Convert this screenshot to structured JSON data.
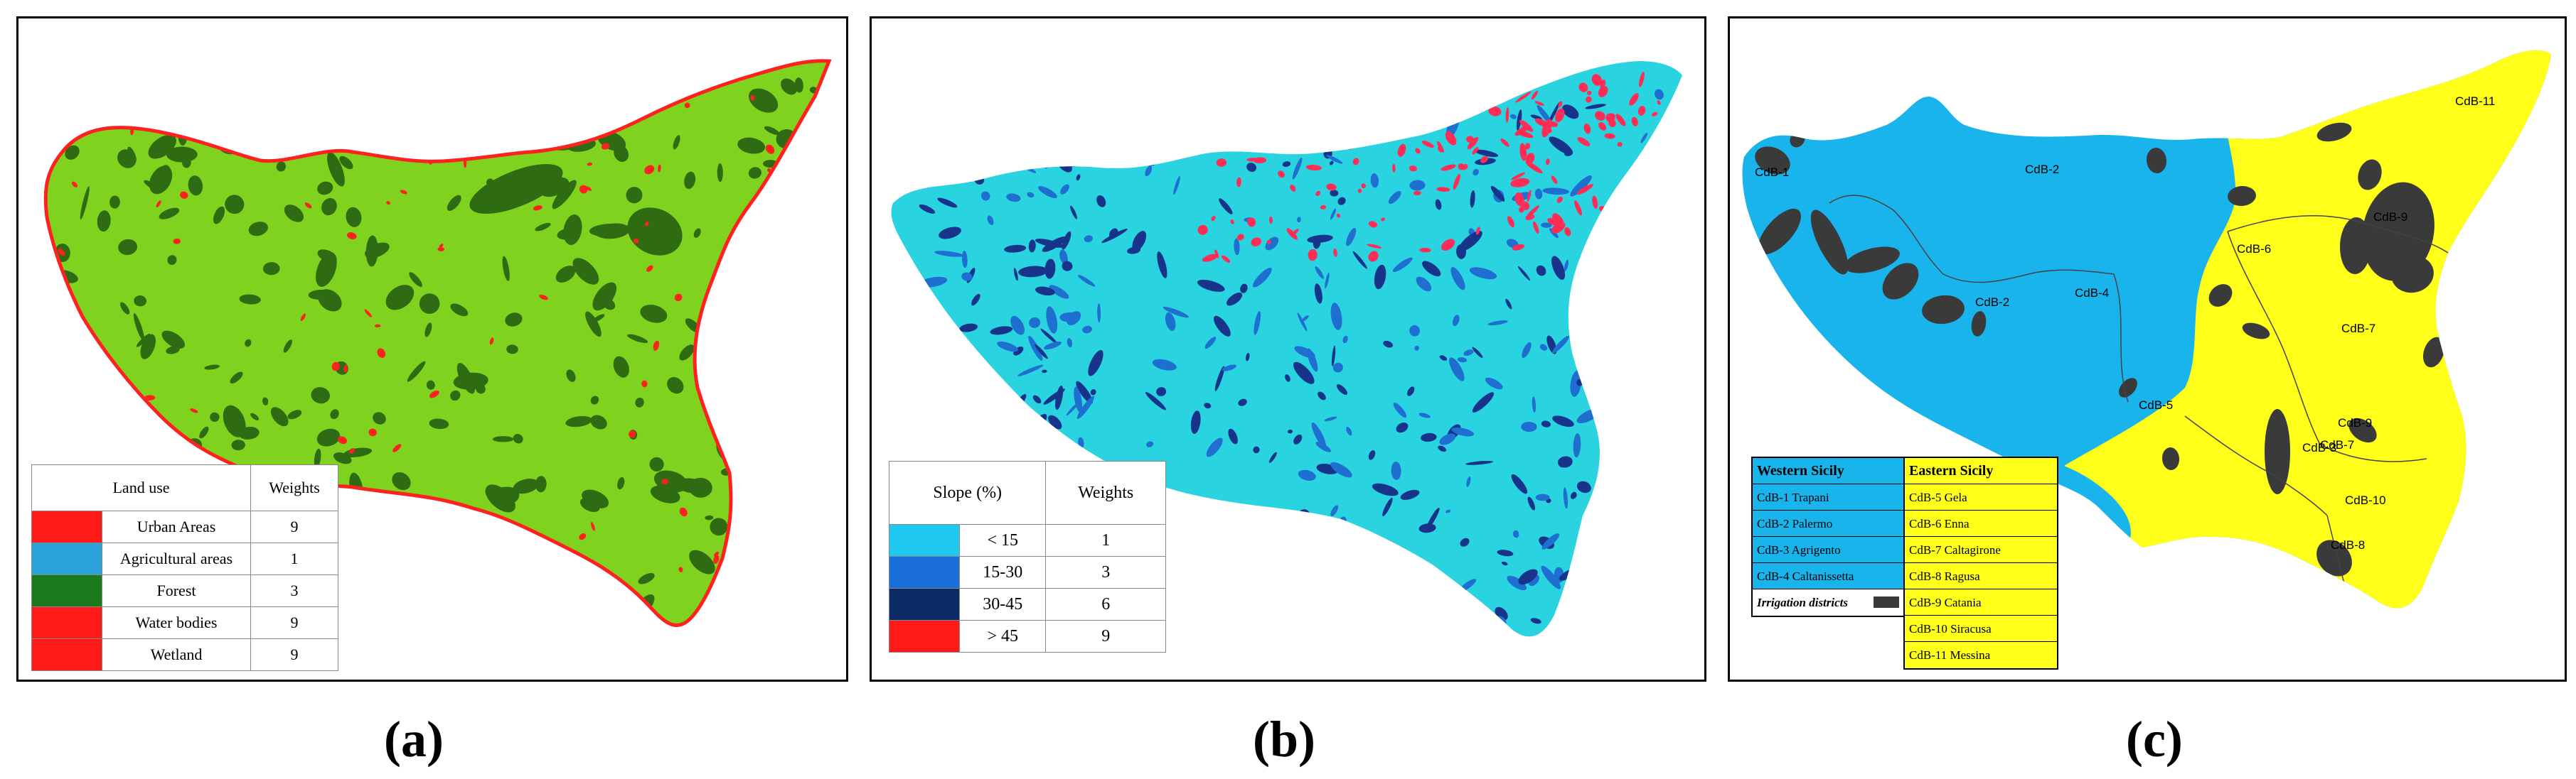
{
  "panels": {
    "a": {
      "caption": "(a)",
      "legend": {
        "headers": [
          "Land use",
          "Weights"
        ],
        "rows": [
          {
            "label": "Urban Areas",
            "weight": "9",
            "color": "#ff1a1a"
          },
          {
            "label": "Agricultural areas",
            "weight": "1",
            "color": "#2aa3d8"
          },
          {
            "label": "Forest",
            "weight": "3",
            "color": "#1b7a1b"
          },
          {
            "label": "Water bodies",
            "weight": "9",
            "color": "#ff1a1a"
          },
          {
            "label": "Wetland",
            "weight": "9",
            "color": "#ff1a1a"
          }
        ]
      },
      "colors": {
        "base": "#7fd31f",
        "forest": "#2e6b12",
        "urban": "#ff2020"
      }
    },
    "b": {
      "caption": "(b)",
      "legend": {
        "headers": [
          "Slope (%)",
          "Weights"
        ],
        "rows": [
          {
            "label": "< 15",
            "weight": "1",
            "color": "#1ec8ef"
          },
          {
            "label": "15-30",
            "weight": "3",
            "color": "#1a6ed8"
          },
          {
            "label": "30-45",
            "weight": "6",
            "color": "#0b2a66"
          },
          {
            "label": "> 45",
            "weight": "9",
            "color": "#ff1a1a"
          }
        ]
      },
      "colors": {
        "base": "#29d3e0",
        "mid": "#1f6fd0",
        "dark": "#17338a",
        "steep": "#ff2d55"
      }
    },
    "c": {
      "caption": "(c)",
      "labels": [
        "CdB-1",
        "CdB-2",
        "CdB-2",
        "CdB-4",
        "CdB-11",
        "CdB-6",
        "CdB-9",
        "CdB-7",
        "CdB-5",
        "CdB-9",
        "CdB-3",
        "CdB-7",
        "CdB-10",
        "CdB-8"
      ],
      "legend": {
        "western": {
          "title": "Western Sicily",
          "items": [
            "CdB-1 Trapani",
            "CdB-2 Palermo",
            "CdB-3 Agrigento",
            "CdB-4 Caltanissetta"
          ],
          "irrigation": "Irrigation districts"
        },
        "eastern": {
          "title": "Eastern Sicily",
          "items": [
            "CdB-5 Gela",
            "CdB-6 Enna",
            "CdB-7 Caltagirone",
            "CdB-8 Ragusa",
            "CdB-9 Catania",
            "CdB-10 Siracusa",
            "CdB-11 Messina"
          ]
        }
      },
      "colors": {
        "western": "#19b4ec",
        "eastern": "#ffff1a",
        "irrigation": "#3a3a3a"
      }
    }
  }
}
